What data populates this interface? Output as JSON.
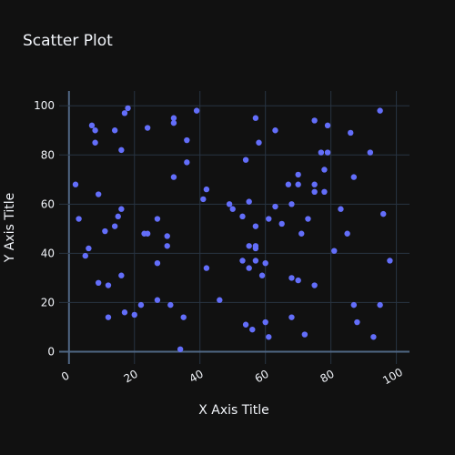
{
  "chart_data": {
    "type": "scatter",
    "title": "Scatter Plot",
    "xlabel": "X Axis Title",
    "ylabel": "Y Axis Title",
    "xlim": [
      -3,
      104
    ],
    "ylim": [
      -5,
      106
    ],
    "xticks": [
      0,
      20,
      40,
      60,
      80,
      100
    ],
    "yticks": [
      0,
      20,
      40,
      60,
      80,
      100
    ],
    "grid": true,
    "series": [
      {
        "color": "#636efa",
        "points": [
          [
            2,
            68
          ],
          [
            3,
            54
          ],
          [
            5,
            39
          ],
          [
            6,
            42
          ],
          [
            7,
            92
          ],
          [
            8,
            85
          ],
          [
            8,
            90
          ],
          [
            9,
            64
          ],
          [
            9,
            28
          ],
          [
            11,
            49
          ],
          [
            12,
            27
          ],
          [
            12,
            14
          ],
          [
            14,
            51
          ],
          [
            14,
            90
          ],
          [
            15,
            55
          ],
          [
            16,
            58
          ],
          [
            16,
            82
          ],
          [
            16,
            31
          ],
          [
            17,
            16
          ],
          [
            17,
            97
          ],
          [
            18,
            99
          ],
          [
            20,
            15
          ],
          [
            22,
            19
          ],
          [
            23,
            48
          ],
          [
            24,
            48
          ],
          [
            24,
            91
          ],
          [
            27,
            54
          ],
          [
            27,
            36
          ],
          [
            27,
            21
          ],
          [
            30,
            47
          ],
          [
            30,
            43
          ],
          [
            31,
            19
          ],
          [
            32,
            93
          ],
          [
            32,
            95
          ],
          [
            32,
            71
          ],
          [
            34,
            1
          ],
          [
            35,
            14
          ],
          [
            36,
            86
          ],
          [
            36,
            77
          ],
          [
            39,
            98
          ],
          [
            41,
            62
          ],
          [
            42,
            66
          ],
          [
            42,
            34
          ],
          [
            46,
            21
          ],
          [
            49,
            60
          ],
          [
            50,
            58
          ],
          [
            53,
            55
          ],
          [
            53,
            37
          ],
          [
            54,
            78
          ],
          [
            54,
            11
          ],
          [
            55,
            43
          ],
          [
            55,
            34
          ],
          [
            55,
            61
          ],
          [
            56,
            9
          ],
          [
            57,
            95
          ],
          [
            57,
            51
          ],
          [
            57,
            43
          ],
          [
            57,
            42
          ],
          [
            57,
            37
          ],
          [
            58,
            85
          ],
          [
            59,
            31
          ],
          [
            60,
            36
          ],
          [
            60,
            12
          ],
          [
            61,
            6
          ],
          [
            61,
            54
          ],
          [
            63,
            90
          ],
          [
            63,
            59
          ],
          [
            65,
            52
          ],
          [
            67,
            68
          ],
          [
            68,
            60
          ],
          [
            68,
            30
          ],
          [
            68,
            14
          ],
          [
            70,
            72
          ],
          [
            70,
            68
          ],
          [
            70,
            29
          ],
          [
            71,
            48
          ],
          [
            72,
            7
          ],
          [
            73,
            54
          ],
          [
            75,
            94
          ],
          [
            75,
            68
          ],
          [
            75,
            65
          ],
          [
            75,
            27
          ],
          [
            77,
            81
          ],
          [
            78,
            74
          ],
          [
            78,
            65
          ],
          [
            79,
            81
          ],
          [
            79,
            92
          ],
          [
            81,
            41
          ],
          [
            83,
            58
          ],
          [
            85,
            48
          ],
          [
            86,
            89
          ],
          [
            87,
            71
          ],
          [
            87,
            19
          ],
          [
            88,
            12
          ],
          [
            92,
            81
          ],
          [
            93,
            6
          ],
          [
            95,
            98
          ],
          [
            95,
            19
          ],
          [
            96,
            56
          ],
          [
            98,
            37
          ]
        ]
      }
    ]
  }
}
